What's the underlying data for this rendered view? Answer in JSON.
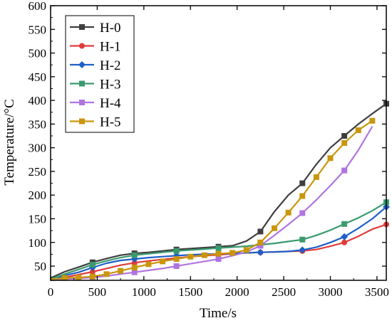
{
  "chart_data": {
    "type": "line",
    "xlabel": "Time/s",
    "ylabel": "Temperature/°C",
    "xlim": [
      0,
      3600
    ],
    "ylim": [
      20,
      600
    ],
    "xticks": [
      0,
      500,
      1000,
      1500,
      2000,
      2500,
      3000,
      3500
    ],
    "yticks": [
      50,
      100,
      150,
      200,
      250,
      300,
      350,
      400,
      450,
      500,
      550,
      600
    ],
    "xtick_labels": [
      "0",
      "500",
      "1000",
      "1500",
      "2000",
      "2500",
      "3000",
      "3500"
    ],
    "ytick_labels": [
      "50",
      "100",
      "150",
      "200",
      "250",
      "300",
      "350",
      "400",
      "450",
      "500",
      "550",
      "600"
    ],
    "grid": false,
    "legend_position": "top-left",
    "series": [
      {
        "name": "H-0",
        "color": "#3f3f3f",
        "marker": "square",
        "x": [
          0,
          150,
          300,
          450,
          600,
          750,
          900,
          1050,
          1200,
          1350,
          1500,
          1650,
          1800,
          1950,
          2100,
          2250,
          2400,
          2550,
          2700,
          2850,
          3000,
          3150,
          3300,
          3450,
          3600
        ],
        "y": [
          25,
          38,
          48,
          58,
          66,
          73,
          77,
          79,
          82,
          85,
          87,
          89,
          91,
          93,
          103,
          123,
          165,
          200,
          225,
          265,
          300,
          325,
          350,
          372,
          393
        ],
        "marker_x": [
          450,
          900,
          1350,
          1800,
          2250,
          2700,
          3150,
          3600
        ]
      },
      {
        "name": "H-1",
        "color": "#e03b3b",
        "marker": "circle",
        "x": [
          0,
          150,
          300,
          450,
          600,
          750,
          900,
          1050,
          1200,
          1350,
          1500,
          1650,
          1800,
          1950,
          2100,
          2250,
          2400,
          2550,
          2700,
          2850,
          3000,
          3150,
          3300,
          3450,
          3600
        ],
        "y": [
          20,
          26,
          32,
          38,
          45,
          52,
          57,
          61,
          64,
          67,
          70,
          72,
          74,
          76,
          78,
          79,
          80,
          81,
          82,
          85,
          92,
          100,
          113,
          128,
          138
        ],
        "marker_x": [
          450,
          900,
          1350,
          1800,
          2250,
          2700,
          3150,
          3600
        ]
      },
      {
        "name": "H-2",
        "color": "#1f5fc8",
        "marker": "diamond",
        "x": [
          0,
          150,
          300,
          450,
          600,
          750,
          900,
          1050,
          1200,
          1350,
          1500,
          1650,
          1800,
          1950,
          2100,
          2250,
          2400,
          2550,
          2700,
          2850,
          3000,
          3150,
          3300,
          3450,
          3600
        ],
        "y": [
          22,
          30,
          37,
          47,
          56,
          62,
          65,
          68,
          70,
          72,
          74,
          75,
          76,
          77,
          78,
          79,
          80,
          81,
          84,
          90,
          100,
          112,
          130,
          150,
          175
        ],
        "marker_x": [
          450,
          900,
          1350,
          1800,
          2250,
          2700,
          3150,
          3600
        ]
      },
      {
        "name": "H-3",
        "color": "#3a9a6e",
        "marker": "square",
        "x": [
          0,
          150,
          300,
          450,
          600,
          750,
          900,
          1050,
          1200,
          1350,
          1500,
          1650,
          1800,
          1950,
          2100,
          2250,
          2400,
          2550,
          2700,
          2850,
          3000,
          3150,
          3300,
          3450,
          3600
        ],
        "y": [
          22,
          33,
          43,
          53,
          61,
          68,
          73,
          76,
          79,
          82,
          84,
          86,
          88,
          90,
          92,
          95,
          98,
          102,
          106,
          115,
          126,
          139,
          152,
          167,
          185
        ],
        "marker_x": [
          450,
          900,
          1350,
          1800,
          2250,
          2700,
          3150,
          3600
        ]
      },
      {
        "name": "H-4",
        "color": "#b074e0",
        "marker": "square",
        "x": [
          0,
          150,
          300,
          450,
          600,
          750,
          900,
          1050,
          1200,
          1350,
          1500,
          1650,
          1800,
          1950,
          2100,
          2250,
          2400,
          2550,
          2700,
          2850,
          3000,
          3150,
          3300,
          3450
        ],
        "y": [
          20,
          23,
          24,
          26,
          29,
          33,
          37,
          41,
          45,
          50,
          55,
          60,
          65,
          72,
          80,
          93,
          115,
          138,
          162,
          190,
          220,
          252,
          295,
          345
        ],
        "marker_x": [
          450,
          900,
          1350,
          1800,
          2250,
          2700,
          3150
        ]
      },
      {
        "name": "H-5",
        "color": "#c9960c",
        "marker": "square",
        "x": [
          0,
          150,
          300,
          450,
          600,
          750,
          900,
          1050,
          1200,
          1350,
          1500,
          1650,
          1800,
          1950,
          2100,
          2250,
          2400,
          2550,
          2700,
          2850,
          3000,
          3150,
          3300,
          3450
        ],
        "y": [
          22,
          25,
          26,
          28,
          33,
          40,
          47,
          54,
          60,
          65,
          70,
          73,
          76,
          78,
          84,
          100,
          130,
          163,
          198,
          238,
          278,
          310,
          337,
          357
        ],
        "marker_x": [
          150,
          300,
          450,
          600,
          750,
          900,
          1050,
          1200,
          1350,
          1500,
          1650,
          1800,
          1950,
          2100,
          2250,
          2400,
          2550,
          2700,
          2850,
          3000,
          3150,
          3300,
          3450
        ]
      }
    ]
  }
}
